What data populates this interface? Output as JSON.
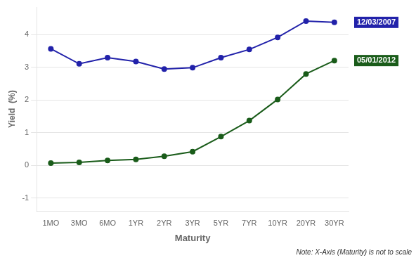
{
  "chart_data": {
    "type": "line",
    "categories": [
      "1MO",
      "3MO",
      "6MO",
      "1YR",
      "2YR",
      "3YR",
      "5YR",
      "7YR",
      "10YR",
      "20YR",
      "30YR"
    ],
    "series": [
      {
        "name": "12/03/2007",
        "color": "#2222aa",
        "marker": "circle",
        "values": [
          3.57,
          3.11,
          3.3,
          3.18,
          2.95,
          2.99,
          3.3,
          3.55,
          3.92,
          4.42,
          4.38
        ]
      },
      {
        "name": "05/01/2012",
        "color": "#1a5c1a",
        "marker": "circle",
        "values": [
          0.07,
          0.09,
          0.15,
          0.18,
          0.28,
          0.42,
          0.88,
          1.37,
          2.02,
          2.8,
          3.21
        ]
      }
    ],
    "xlabel": "Maturity",
    "ylabel": "Yield  (%)",
    "annotations": [
      "Note: X-Axis (Maturity) is not to scale"
    ],
    "ylim": [
      -1.4,
      4.85
    ],
    "yticks": [
      -1,
      0,
      1,
      2,
      3,
      4
    ],
    "grid": "y"
  }
}
